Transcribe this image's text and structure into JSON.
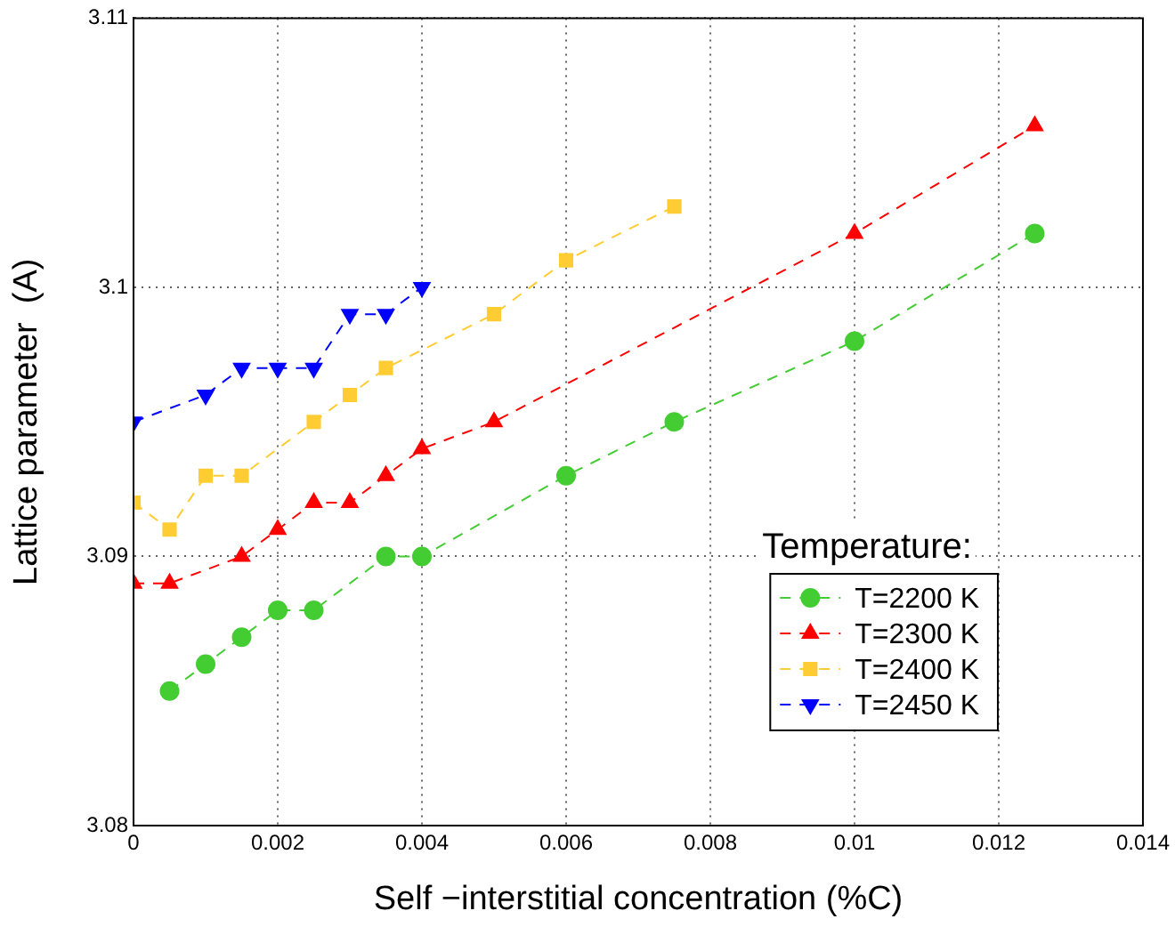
{
  "chart_data": {
    "type": "line",
    "xlabel": "Self −interstitial concentration (%C)",
    "ylabel": "Lattice parameter  (A)",
    "xlim": [
      0,
      0.014
    ],
    "xticks": [
      0,
      0.002,
      0.004,
      0.006,
      0.008,
      0.01,
      0.012,
      0.014
    ],
    "ylim": [
      3.08,
      3.11
    ],
    "yticks": [
      3.08,
      3.09,
      3.1,
      3.11
    ],
    "grid": true,
    "legend": "bottom right",
    "legend_title": "Temperature:",
    "line_style": "dashed",
    "series": [
      {
        "name": "T=2200 K",
        "color": "#44cc33",
        "marker": "circle",
        "x": [
          0.0005,
          0.001,
          0.0015,
          0.002,
          0.0025,
          0.0035,
          0.004,
          0.006,
          0.0075,
          0.01,
          0.0125
        ],
        "values": [
          3.085,
          3.086,
          3.087,
          3.088,
          3.088,
          3.09,
          3.09,
          3.093,
          3.095,
          3.098,
          3.102
        ]
      },
      {
        "name": "T=2300 K",
        "color": "#ff0000",
        "marker": "triangle",
        "x": [
          0,
          0.0005,
          0.0015,
          0.002,
          0.0025,
          0.003,
          0.0035,
          0.004,
          0.005,
          0.01,
          0.0125
        ],
        "values": [
          3.089,
          3.089,
          3.09,
          3.091,
          3.092,
          3.092,
          3.093,
          3.094,
          3.095,
          3.102,
          3.106
        ]
      },
      {
        "name": "T=2400 K",
        "color": "#ffcc33",
        "marker": "square",
        "x": [
          0,
          0.0005,
          0.001,
          0.0015,
          0.0025,
          0.003,
          0.0035,
          0.005,
          0.006,
          0.0075
        ],
        "values": [
          3.092,
          3.091,
          3.093,
          3.093,
          3.095,
          3.096,
          3.097,
          3.099,
          3.101,
          3.103
        ]
      },
      {
        "name": "T=2450 K",
        "color": "#0000ff",
        "marker": "triangle_down",
        "x": [
          0,
          0.001,
          0.0015,
          0.002,
          0.0025,
          0.003,
          0.0035,
          0.004
        ],
        "values": [
          3.095,
          3.096,
          3.097,
          3.097,
          3.097,
          3.099,
          3.099,
          3.1
        ]
      }
    ]
  }
}
